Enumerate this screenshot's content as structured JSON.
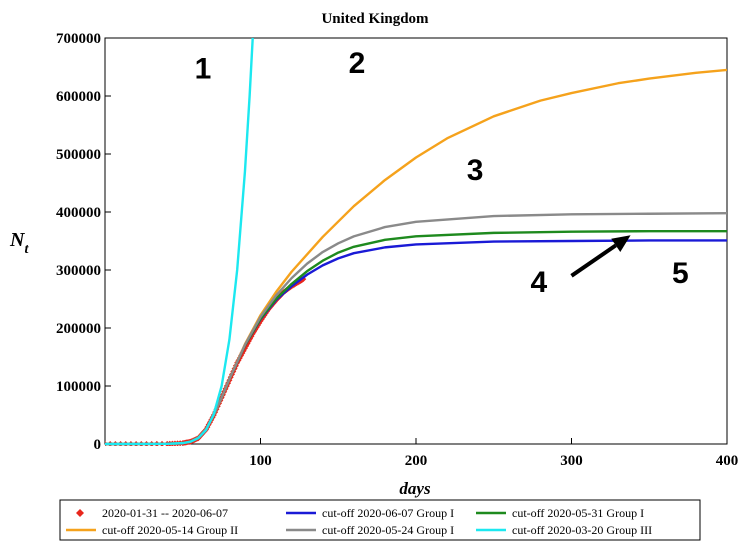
{
  "chart_data": {
    "type": "line",
    "title": "United Kingdom",
    "xlabel": "days",
    "ylabel": "N",
    "ylabel_sub": "t",
    "xlim": [
      0,
      400
    ],
    "ylim": [
      0,
      700000
    ],
    "xticks": [
      100,
      200,
      300,
      400
    ],
    "yticks": [
      0,
      100000,
      200000,
      300000,
      400000,
      500000,
      600000,
      700000
    ],
    "ytick_labels": [
      "0",
      "100000",
      "200000",
      "300000",
      "400000",
      "500000",
      "600000",
      "700000"
    ],
    "xtick_labels": [
      "100",
      "200",
      "300",
      "400"
    ],
    "grid": false,
    "legend_position": "bottom",
    "data_series": {
      "name": "2020-01-31 -- 2020-06-07",
      "color": "#e8261c",
      "x": [
        0,
        20,
        40,
        50,
        55,
        60,
        65,
        70,
        75,
        80,
        85,
        90,
        95,
        100,
        105,
        110,
        115,
        120,
        125,
        128
      ],
      "y": [
        0,
        0,
        200,
        1500,
        4000,
        10000,
        25000,
        50000,
        80000,
        110000,
        140000,
        165000,
        190000,
        212000,
        232000,
        248000,
        262000,
        272000,
        280000,
        285000
      ]
    },
    "series": [
      {
        "name": "cut-off 2020-06-07 Group I",
        "color": "#1a1ad6",
        "x": [
          0,
          40,
          50,
          55,
          60,
          65,
          70,
          75,
          80,
          90,
          100,
          110,
          120,
          130,
          140,
          150,
          160,
          180,
          200,
          250,
          300,
          350,
          400
        ],
        "y": [
          0,
          300,
          1500,
          4000,
          11000,
          26000,
          50000,
          80000,
          112000,
          170000,
          215000,
          248000,
          272000,
          292000,
          308000,
          320000,
          329000,
          339000,
          344000,
          349000,
          350000,
          351000,
          351000
        ]
      },
      {
        "name": "cut-off 2020-05-31 Group I",
        "color": "#1e8a1e",
        "x": [
          0,
          40,
          50,
          55,
          60,
          65,
          70,
          75,
          80,
          90,
          100,
          110,
          120,
          130,
          140,
          150,
          160,
          180,
          200,
          250,
          300,
          350,
          400
        ],
        "y": [
          0,
          300,
          1500,
          4000,
          11000,
          26000,
          50000,
          80000,
          112000,
          170000,
          216000,
          250000,
          276000,
          298000,
          316000,
          330000,
          340000,
          352000,
          358000,
          364000,
          366000,
          367000,
          367000
        ]
      },
      {
        "name": "cut-off 2020-05-14 Group II",
        "color": "#f5a21c",
        "x": [
          0,
          40,
          50,
          55,
          60,
          65,
          70,
          75,
          80,
          90,
          100,
          110,
          120,
          140,
          160,
          180,
          200,
          220,
          250,
          280,
          300,
          330,
          350,
          380,
          400
        ],
        "y": [
          0,
          300,
          1500,
          4000,
          11000,
          26000,
          50000,
          80000,
          112000,
          172000,
          222000,
          262000,
          297000,
          357000,
          410000,
          455000,
          494000,
          527000,
          565000,
          592000,
          605000,
          622000,
          630000,
          640000,
          645000
        ]
      },
      {
        "name": "cut-off 2020-05-24 Group I",
        "color": "#8a8a8a",
        "x": [
          0,
          40,
          50,
          55,
          60,
          65,
          70,
          75,
          80,
          90,
          100,
          110,
          120,
          130,
          140,
          150,
          160,
          180,
          200,
          250,
          300,
          350,
          400
        ],
        "y": [
          0,
          300,
          1500,
          4000,
          11000,
          26000,
          50000,
          80000,
          112000,
          171000,
          219000,
          256000,
          286000,
          311000,
          331000,
          346000,
          358000,
          374000,
          383000,
          393000,
          396000,
          397000,
          398000
        ]
      },
      {
        "name": "cut-off 2020-03-20 Group III",
        "color": "#1ce8f0",
        "x": [
          0,
          40,
          50,
          55,
          60,
          65,
          70,
          75,
          80,
          85,
          90,
          93,
          95
        ],
        "y": [
          0,
          300,
          1500,
          4000,
          10000,
          24000,
          52000,
          100000,
          180000,
          300000,
          470000,
          600000,
          700000
        ]
      }
    ],
    "annotations": [
      {
        "text": "1",
        "x": 63,
        "y": 630000
      },
      {
        "text": "2",
        "x": 162,
        "y": 640000
      },
      {
        "text": "3",
        "x": 238,
        "y": 455000
      },
      {
        "text": "4",
        "x": 279,
        "y": 262000
      },
      {
        "text": "5",
        "x": 370,
        "y": 278000
      }
    ],
    "arrow": {
      "from": [
        300,
        290000
      ],
      "to": [
        338,
        360000
      ]
    },
    "legend_order": [
      [
        "data",
        0
      ],
      [
        "series",
        0
      ],
      [
        "series",
        1
      ],
      [
        "series",
        2
      ],
      [
        "series",
        3
      ],
      [
        "series",
        4
      ]
    ]
  }
}
